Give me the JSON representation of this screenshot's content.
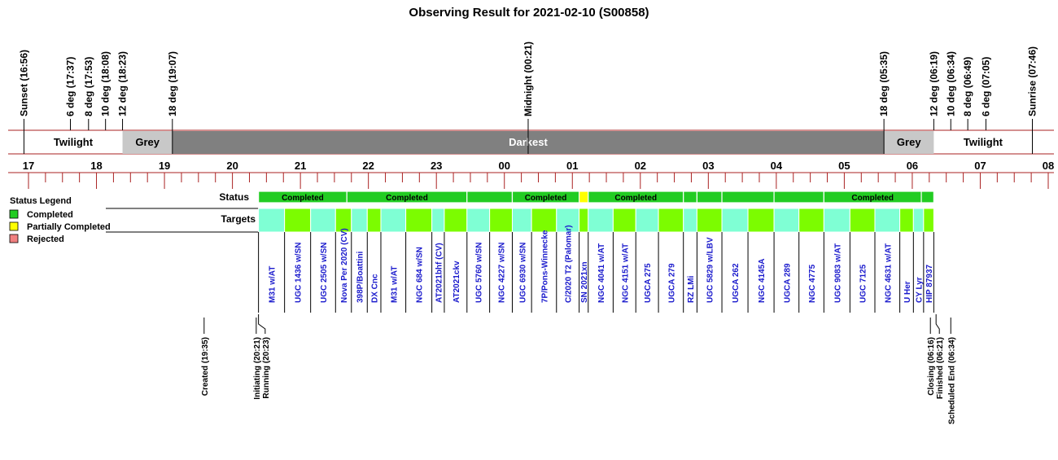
{
  "chart_data": {
    "type": "table",
    "title": "Observing Result for 2021-02-10 (S00858)",
    "time_axis": {
      "hour_ticks": [
        "17",
        "18",
        "19",
        "20",
        "21",
        "22",
        "23",
        "00",
        "01",
        "02",
        "03",
        "04",
        "05",
        "06",
        "07",
        "08"
      ],
      "start_hour": 17,
      "end_hour": 32
    },
    "events_top": [
      {
        "label": "Sunset (16:56)",
        "time": "16:56"
      },
      {
        "label": "6 deg (17:37)",
        "time": "17:37"
      },
      {
        "label": "8 deg (17:53)",
        "time": "17:53"
      },
      {
        "label": "10 deg (18:08)",
        "time": "18:08"
      },
      {
        "label": "12 deg (18:23)",
        "time": "18:23"
      },
      {
        "label": "18 deg (19:07)",
        "time": "19:07"
      },
      {
        "label": "Midnight (00:21)",
        "time": "24:21"
      },
      {
        "label": "18 deg (05:35)",
        "time": "29:35"
      },
      {
        "label": "12 deg (06:19)",
        "time": "30:19"
      },
      {
        "label": "10 deg (06:34)",
        "time": "30:34"
      },
      {
        "label": "8 deg (06:49)",
        "time": "30:49"
      },
      {
        "label": "6 deg (07:05)",
        "time": "31:05"
      },
      {
        "label": "Sunrise (07:46)",
        "time": "31:46"
      }
    ],
    "sky_conditions": [
      {
        "label": "Twilight",
        "start": "16:56",
        "end": "18:23",
        "color": "#ffffff"
      },
      {
        "label": "Grey",
        "start": "18:23",
        "end": "19:07",
        "color": "#c8c8c8"
      },
      {
        "label": "Darkest",
        "start": "19:07",
        "end": "29:35",
        "color": "#808080"
      },
      {
        "label": "Grey",
        "start": "29:35",
        "end": "30:19",
        "color": "#c8c8c8"
      },
      {
        "label": "Twilight",
        "start": "30:19",
        "end": "31:46",
        "color": "#ffffff"
      }
    ],
    "row_labels": {
      "status": "Status",
      "targets": "Targets"
    },
    "legend": {
      "title": "Status Legend",
      "items": [
        {
          "label": "Completed",
          "color": "#22cc22"
        },
        {
          "label": "Partially Completed",
          "color": "#ffff00"
        },
        {
          "label": "Rejected",
          "color": "#f08080"
        }
      ]
    },
    "status": [
      {
        "label": "Completed",
        "start": "20:23",
        "end": "21:41",
        "state": "completed"
      },
      {
        "label": "Completed",
        "start": "21:41",
        "end": "23:27",
        "state": "completed"
      },
      {
        "label": "",
        "start": "23:27",
        "end": "24:07",
        "state": "completed"
      },
      {
        "label": "Completed",
        "start": "24:07",
        "end": "25:06",
        "state": "completed"
      },
      {
        "label": "",
        "start": "25:06",
        "end": "25:14",
        "state": "partial"
      },
      {
        "label": "Completed",
        "start": "25:14",
        "end": "26:38",
        "state": "completed"
      },
      {
        "label": "",
        "start": "26:38",
        "end": "26:50",
        "state": "completed"
      },
      {
        "label": "",
        "start": "26:50",
        "end": "27:12",
        "state": "completed"
      },
      {
        "label": "",
        "start": "27:12",
        "end": "27:58",
        "state": "completed"
      },
      {
        "label": "",
        "start": "27:58",
        "end": "28:42",
        "state": "completed"
      },
      {
        "label": "Completed",
        "start": "28:42",
        "end": "30:08",
        "state": "completed"
      },
      {
        "label": "",
        "start": "30:08",
        "end": "30:19",
        "state": "completed"
      }
    ],
    "targets": [
      {
        "name": "M31 w/AT",
        "start": "20:23",
        "end": "20:46"
      },
      {
        "name": "UGC 1436 w/SN",
        "start": "20:46",
        "end": "21:09"
      },
      {
        "name": "UGC 2505 w/SN",
        "start": "21:09",
        "end": "21:31"
      },
      {
        "name": "Nova Per 2020 (CV)",
        "start": "21:31",
        "end": "21:45"
      },
      {
        "name": "398P/Boattini",
        "start": "21:45",
        "end": "21:59"
      },
      {
        "name": "DX Cnc",
        "start": "21:59",
        "end": "22:11"
      },
      {
        "name": "M31 w/AT",
        "start": "22:11",
        "end": "22:33"
      },
      {
        "name": "NGC 684 w/SN",
        "start": "22:33",
        "end": "22:56"
      },
      {
        "name": "AT2021bhf (CV)",
        "start": "22:56",
        "end": "23:07"
      },
      {
        "name": "AT2021ckv",
        "start": "23:07",
        "end": "23:27"
      },
      {
        "name": "UGC 5760 w/SN",
        "start": "23:27",
        "end": "23:47"
      },
      {
        "name": "NGC 4227 w/SN",
        "start": "23:47",
        "end": "24:07"
      },
      {
        "name": "UGC 6930 w/SN",
        "start": "24:07",
        "end": "24:24"
      },
      {
        "name": "7P/Pons-Winnecke",
        "start": "24:24",
        "end": "24:46"
      },
      {
        "name": "C/2020 T2 (Palomar)",
        "start": "24:46",
        "end": "25:06"
      },
      {
        "name": "SN 2021xn",
        "start": "25:06",
        "end": "25:14"
      },
      {
        "name": "NGC 4041 w/AT",
        "start": "25:14",
        "end": "25:36"
      },
      {
        "name": "NGC 4151 w/AT",
        "start": "25:36",
        "end": "25:56"
      },
      {
        "name": "UGCA 275",
        "start": "25:56",
        "end": "26:16"
      },
      {
        "name": "UGCA 279",
        "start": "26:16",
        "end": "26:38"
      },
      {
        "name": "RZ LMi",
        "start": "26:38",
        "end": "26:50"
      },
      {
        "name": "UGC 5829 w/LBV",
        "start": "26:50",
        "end": "27:12"
      },
      {
        "name": "UGCA 262",
        "start": "27:12",
        "end": "27:35"
      },
      {
        "name": "NGC 4145A",
        "start": "27:35",
        "end": "27:58"
      },
      {
        "name": "UGCA 289",
        "start": "27:58",
        "end": "28:20"
      },
      {
        "name": "NGC 4775",
        "start": "28:20",
        "end": "28:42"
      },
      {
        "name": "UGC 9083 w/AT",
        "start": "28:42",
        "end": "29:05"
      },
      {
        "name": "UGC 7125",
        "start": "29:05",
        "end": "29:27"
      },
      {
        "name": "NGC 4631 w/AT",
        "start": "29:27",
        "end": "29:49"
      },
      {
        "name": "U Her",
        "start": "29:49",
        "end": "30:01"
      },
      {
        "name": "CY Lyr",
        "start": "30:01",
        "end": "30:10"
      },
      {
        "name": "HIP 87937",
        "start": "30:10",
        "end": "30:19"
      }
    ],
    "events_bottom": [
      {
        "label": "Created (19:35)",
        "time": "19:35"
      },
      {
        "label": "Initiating (20:21)",
        "time": "20:21"
      },
      {
        "label": "Running (20:23)",
        "time": "20:23"
      },
      {
        "label": "Closing (06:16)",
        "time": "30:16"
      },
      {
        "label": "Finished (06:21)",
        "time": "30:21"
      },
      {
        "label": "Scheduled End (06:34)",
        "time": "30:34"
      }
    ]
  }
}
